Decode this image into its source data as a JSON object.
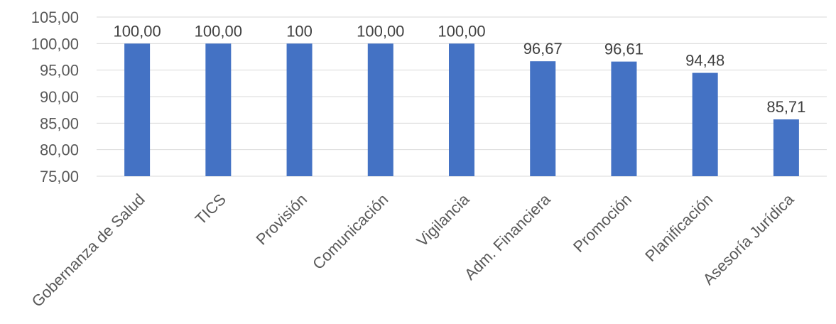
{
  "chart_data": {
    "type": "bar",
    "categories": [
      "Gobernanza de Salud",
      "TICS",
      "Provisión",
      "Comunicación",
      "Vigilancia",
      "Adm. Financiera",
      "Promoción",
      "Planificación",
      "Asesoría Jurídica"
    ],
    "values": [
      100.0,
      100.0,
      100,
      100.0,
      100.0,
      96.67,
      96.61,
      94.48,
      85.71
    ],
    "data_labels": [
      "100,00",
      "100,00",
      "100",
      "100,00",
      "100,00",
      "96,67",
      "96,61",
      "94,48",
      "85,71"
    ],
    "ylim": [
      75,
      105
    ],
    "yticks": [
      75,
      80,
      85,
      90,
      95,
      100,
      105
    ],
    "ytick_labels": [
      "75,00",
      "80,00",
      "85,00",
      "90,00",
      "95,00",
      "100,00",
      "105,00"
    ],
    "grid": true,
    "legend": "none",
    "bar_color": "#4472c4",
    "title": "",
    "xlabel": "",
    "ylabel": ""
  }
}
